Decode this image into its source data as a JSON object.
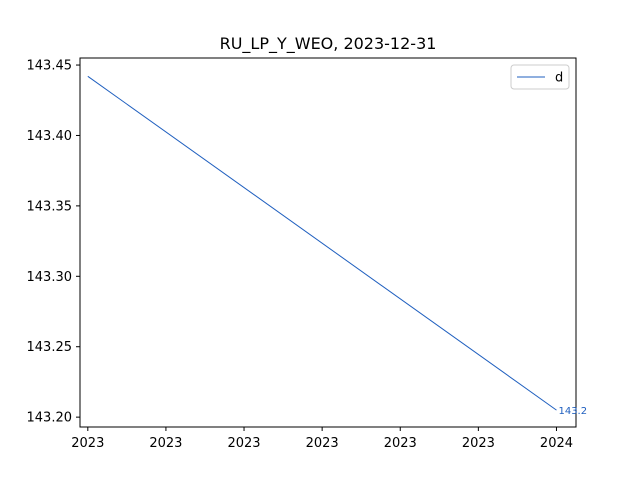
{
  "chart_data": {
    "type": "line",
    "title": "RU_LP_Y_WEO, 2023-12-31",
    "xlabel": "",
    "ylabel": "",
    "x_tick_labels": [
      "2023",
      "2023",
      "2023",
      "2023",
      "2023",
      "2023",
      "2024"
    ],
    "y_ticks": [
      143.2,
      143.25,
      143.3,
      143.35,
      143.4,
      143.45
    ],
    "y_tick_labels": [
      "143.20",
      "143.25",
      "143.30",
      "143.35",
      "143.40",
      "143.45"
    ],
    "ylim": [
      143.193,
      143.455
    ],
    "x_domain": [
      -0.1,
      6.25
    ],
    "series": [
      {
        "name": "d",
        "color": "#1f5fbf",
        "x": [
          0,
          6
        ],
        "y": [
          143.442,
          143.205
        ]
      }
    ],
    "end_label": "143.2",
    "grid": false,
    "legend_position": "top-right"
  }
}
